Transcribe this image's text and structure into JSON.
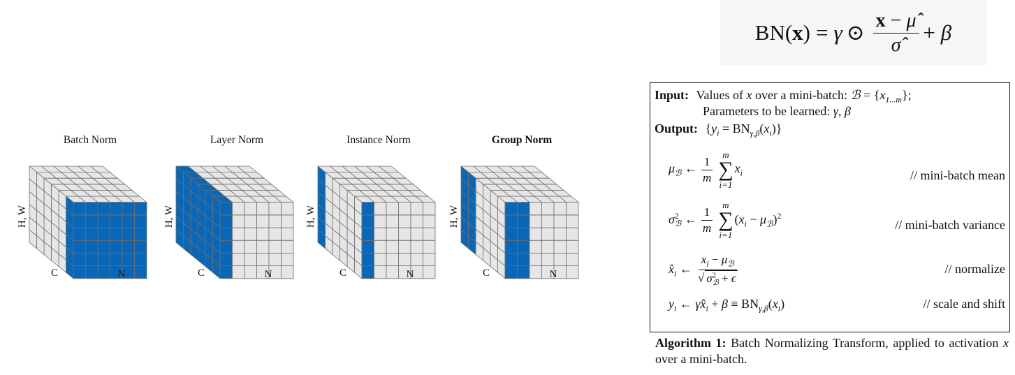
{
  "colors": {
    "highlight": "#0a67b7",
    "cell": "#e6e6e6",
    "grid": "#6f6f6f",
    "panel_bg": "#f6f6f6"
  },
  "cubes": [
    {
      "title": "Batch Norm",
      "bold": false,
      "axis_vertical": "H, W",
      "axis_left": "C",
      "axis_right": "N",
      "highlight": "batch"
    },
    {
      "title": "Layer Norm",
      "bold": false,
      "axis_vertical": "H, W",
      "axis_left": "C",
      "axis_right": "N",
      "highlight": "layer"
    },
    {
      "title": "Instance Norm",
      "bold": false,
      "axis_vertical": "H, W",
      "axis_left": "C",
      "axis_right": "N",
      "highlight": "instance"
    },
    {
      "title": "Group Norm",
      "bold": true,
      "axis_vertical": "H, W",
      "axis_left": "C",
      "axis_right": "N",
      "highlight": "group"
    }
  ],
  "bn_formula": {
    "lhs": "BN(x)",
    "gamma": "γ",
    "odot": "⊙",
    "numerator": "x − μ̂",
    "denominator": "σ̂",
    "plus_beta": "+ β"
  },
  "algorithm": {
    "input_label": "Input:",
    "input_text_1": "Values of x over a mini-batch: ℬ = {x1...m};",
    "input_text_2": "Parameters to be learned: γ, β",
    "output_label": "Output:",
    "output_text": "{yi = BNγ,β(xi)}",
    "steps": [
      {
        "lhs": "μℬ ←",
        "comment": "// mini-batch mean"
      },
      {
        "lhs": "σ²ℬ ←",
        "comment": "// mini-batch variance"
      },
      {
        "lhs": "x̂i ←",
        "comment": "// normalize"
      },
      {
        "lhs": "yi ←",
        "comment": "// scale and shift"
      }
    ]
  },
  "caption": {
    "label": "Algorithm 1:",
    "text": "Batch Normalizing Transform, applied to activation x over a mini-batch."
  }
}
